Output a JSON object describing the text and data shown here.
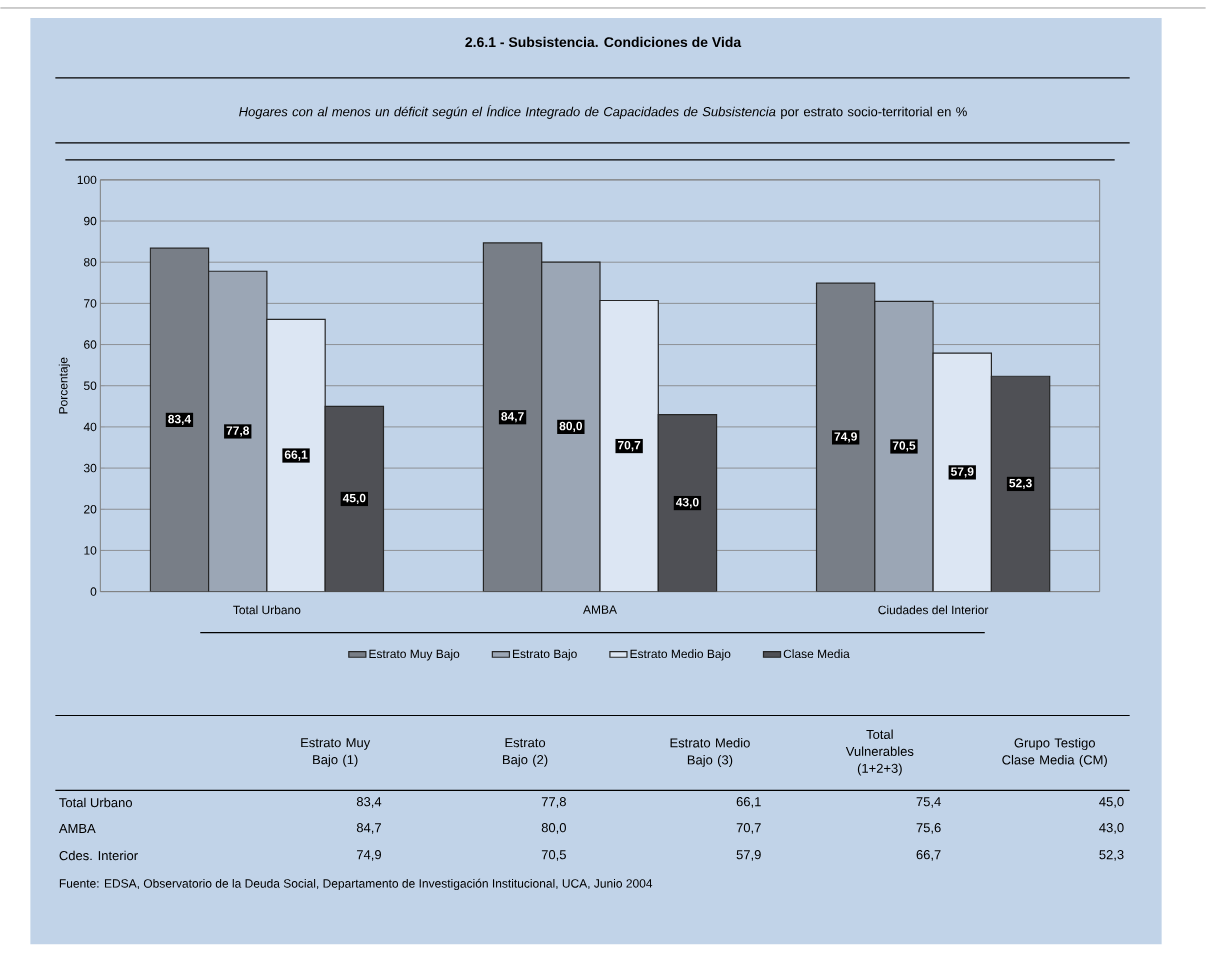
{
  "chart_data": {
    "type": "bar",
    "title": "2.6.1 - Subsistencia. Condiciones de Vida",
    "subtitle": "*Hogares con al menos un déficit según el Índice Integrado de Capacidades de Subsistencia* por estrato socio-territorial en %",
    "ylabel": "Porcentaje",
    "categories": [
      "Total Urbano",
      "AMBA",
      "Ciudades del Interior"
    ],
    "series": [
      {
        "name": "Estrato Muy Bajo",
        "color": "#787e87",
        "values": [
          83.4,
          84.7,
          74.9
        ],
        "value_labels": [
          "83,4",
          "84,7",
          "74,9"
        ]
      },
      {
        "name": "Estrato Bajo",
        "color": "#9ba6b5",
        "values": [
          77.8,
          80.0,
          70.5
        ],
        "value_labels": [
          "77,8",
          "80,0",
          "70,5"
        ]
      },
      {
        "name": "Estrato Medio Bajo",
        "color": "#dce6f3",
        "values": [
          66.1,
          70.7,
          57.9
        ],
        "value_labels": [
          "66,1",
          "70,7",
          "57,9"
        ]
      },
      {
        "name": "Clase Media",
        "color": "#4f5055",
        "values": [
          45.0,
          43.0,
          52.3
        ],
        "value_labels": [
          "45,0",
          "43,0",
          "52,3"
        ]
      }
    ],
    "ylim": [
      0,
      100
    ],
    "yticks": [
      0,
      10,
      20,
      30,
      40,
      50,
      60,
      70,
      80,
      90,
      100
    ],
    "grid": "y",
    "legend": "bottom",
    "annotations": [
      "Estrato Muy Bajo (1)",
      "Estrato Bajo (2)",
      "Estrato Medio Bajo (3)",
      "Total Vulnerables (1+2+3)",
      "Grupo Testigo Clase Media (CM)",
      "Total Urbano",
      "83,4",
      "77,8",
      "66,1",
      "75,4",
      "45,0",
      "AMBA",
      "84,7",
      "80,0",
      "70,7",
      "75,6",
      "43,0",
      "Cdes. Interior",
      "74,9",
      "70,5",
      "57,9",
      "66,7",
      "52,3",
      "Fuente: EDSA, Observatorio de la Deuda Social, Departamento de Investigación Institucional, UCA, Junio 2004"
    ]
  }
}
